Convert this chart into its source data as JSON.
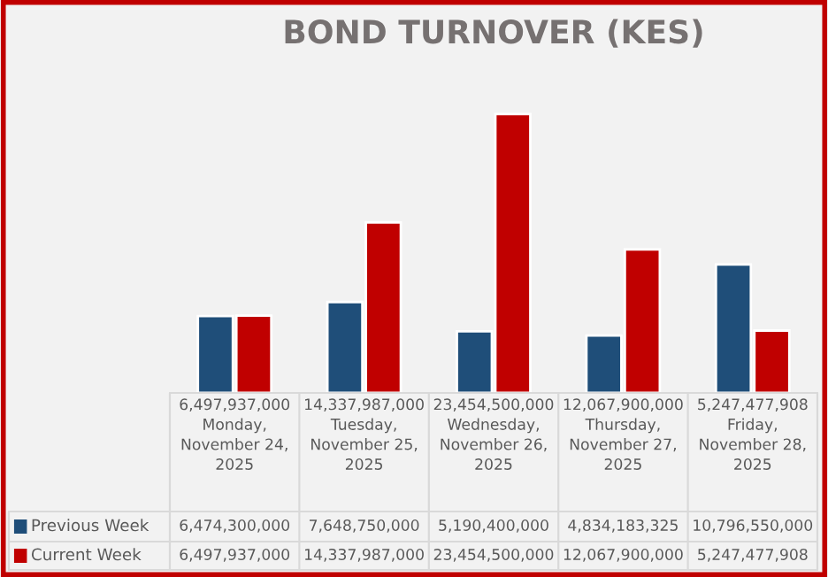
{
  "chart_data": {
    "type": "bar",
    "title": "BOND TURNOVER (KES)",
    "categories": [
      "6,497,937,000\nMonday,\nNovember 24,\n2025",
      "14,337,987,000\nTuesday,\nNovember 25,\n2025",
      "23,454,500,000\nWednesday,\nNovember 26,\n2025",
      "12,067,900,000\nThursday,\nNovember 27,\n2025",
      "5,247,477,908\nFriday,\nNovember 28,\n2025"
    ],
    "series": [
      {
        "name": "Previous Week",
        "color": "#1f4e79",
        "values": [
          6474300000,
          7648750000,
          5190400000,
          4834183325,
          10796550000
        ],
        "value_labels": [
          "6,474,300,000",
          "7,648,750,000",
          "5,190,400,000",
          "4,834,183,325",
          "10,796,550,000"
        ]
      },
      {
        "name": "Current Week",
        "color": "#c00000",
        "values": [
          6497937000,
          14337987000,
          23454500000,
          12067900000,
          5247477908
        ],
        "value_labels": [
          "6,497,937,000",
          "14,337,987,000",
          "23,454,500,000",
          "12,067,900,000",
          "5,247,477,908"
        ]
      }
    ],
    "legend": "bottom left"
  }
}
